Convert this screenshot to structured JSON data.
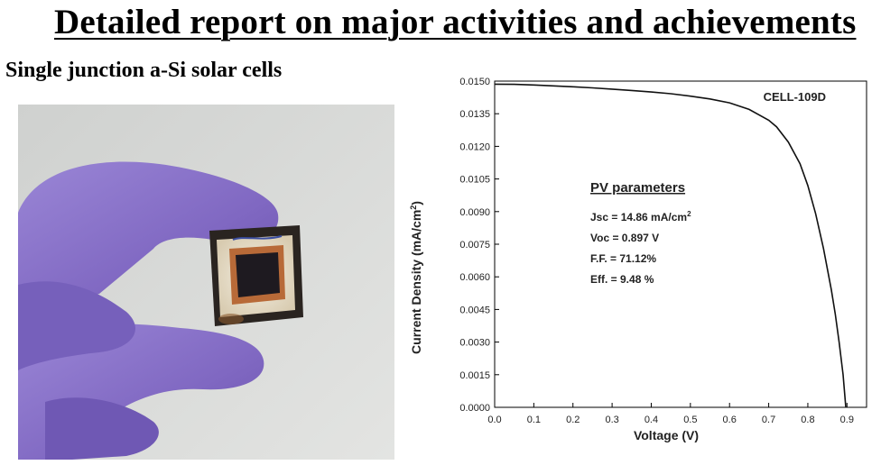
{
  "page": {
    "title": "Detailed report on major activities and achievements",
    "subtitle": "Single junction a-Si solar cells"
  },
  "photo": {
    "subject-icon": "gloved-hand-holding-solar-cell-icon",
    "glove_color": "#8a72c8",
    "background_color": "#d9dad8"
  },
  "chart_data": {
    "type": "line",
    "xlabel": "Voltage (V)",
    "ylabel_main": "Current Density (mA/cm",
    "ylabel_sup": "2",
    "ylabel_end": ")",
    "xlim": [
      0,
      0.95
    ],
    "ylim": [
      0,
      0.015
    ],
    "xticks": [
      0.0,
      0.1,
      0.2,
      0.3,
      0.4,
      0.5,
      0.6,
      0.7,
      0.8,
      0.9
    ],
    "xtick_labels": [
      "0.0",
      "0.1",
      "0.2",
      "0.3",
      "0.4",
      "0.5",
      "0.6",
      "0.7",
      "0.8",
      "0.9"
    ],
    "yticks": [
      0,
      0.0015,
      0.003,
      0.0045,
      0.006,
      0.0075,
      0.009,
      0.0105,
      0.012,
      0.0135,
      0.015
    ],
    "ytick_labels": [
      "0.0000",
      "0.0015",
      "0.0030",
      "0.0045",
      "0.0060",
      "0.0075",
      "0.0090",
      "0.0105",
      "0.0120",
      "0.0135",
      "0.0150"
    ],
    "grid": false,
    "cell_label": "CELL-109D",
    "series": [
      {
        "x": [
          0.0,
          0.05,
          0.1,
          0.15,
          0.2,
          0.25,
          0.3,
          0.35,
          0.4,
          0.45,
          0.5,
          0.55,
          0.6,
          0.65,
          0.7,
          0.72,
          0.75,
          0.78,
          0.8,
          0.82,
          0.84,
          0.86,
          0.87,
          0.88,
          0.89,
          0.897
        ],
        "y": [
          0.01486,
          0.01485,
          0.01482,
          0.01478,
          0.01474,
          0.01469,
          0.01463,
          0.01457,
          0.0145,
          0.01442,
          0.01431,
          0.01418,
          0.014,
          0.0137,
          0.0132,
          0.0129,
          0.0122,
          0.0112,
          0.0102,
          0.0089,
          0.0073,
          0.0054,
          0.0043,
          0.003,
          0.0015,
          0.0
        ]
      }
    ],
    "annotation": {
      "heading": "PV parameters",
      "jsc_main": "Jsc = 14.86 mA/cm",
      "jsc_sup": "2",
      "voc": "Voc = 0.897 V",
      "ff": "F.F. = 71.12%",
      "eff": "Eff. = 9.48 %"
    }
  }
}
